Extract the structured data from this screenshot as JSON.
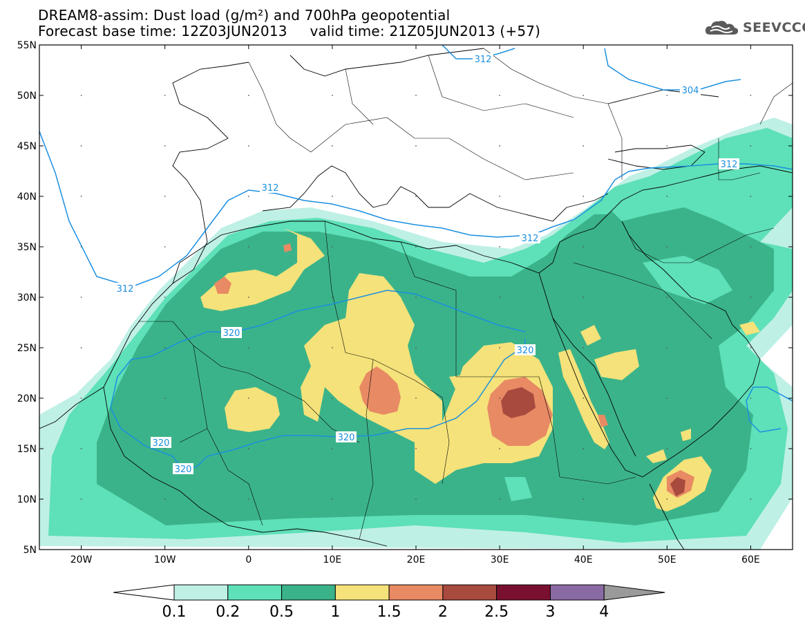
{
  "header": {
    "title_line1": "DREAM8-assim: Dust load (g/m²) and 700hPa geopotential",
    "title_line2": "Forecast base time: 12Z03JUN2013     valid time: 21Z05JUN2013 (+57)",
    "logo_text": "SEEVCCC"
  },
  "map": {
    "lat_labels": [
      "55N",
      "50N",
      "45N",
      "40N",
      "35N",
      "30N",
      "25N",
      "20N",
      "15N",
      "10N",
      "5N"
    ],
    "lon_labels": [
      "20W",
      "10W",
      "0",
      "10E",
      "20E",
      "30E",
      "40E",
      "50E",
      "60E"
    ],
    "contour_labels": [
      "312",
      "304",
      "312",
      "312",
      "312",
      "312",
      "320",
      "320",
      "320",
      "320",
      "320"
    ]
  },
  "colorbar": {
    "values": [
      "0.1",
      "0.2",
      "0.5",
      "1",
      "1.5",
      "2",
      "2.5",
      "3",
      "4"
    ],
    "colors": [
      "#bff0e6",
      "#5ee0b8",
      "#3bb38a",
      "#f5e27a",
      "#e88a64",
      "#a84a3e",
      "#7a1030",
      "#8a6aa4",
      "#9a9a9a"
    ]
  },
  "colors": {
    "dust_light": "#bff0e6",
    "dust_med": "#5ee0b8",
    "dust_dark": "#3bb38a",
    "dust_yellow": "#f5e27a",
    "dust_orange": "#e88a64",
    "dust_red": "#a84a3e",
    "contour": "#1a8fe0"
  }
}
